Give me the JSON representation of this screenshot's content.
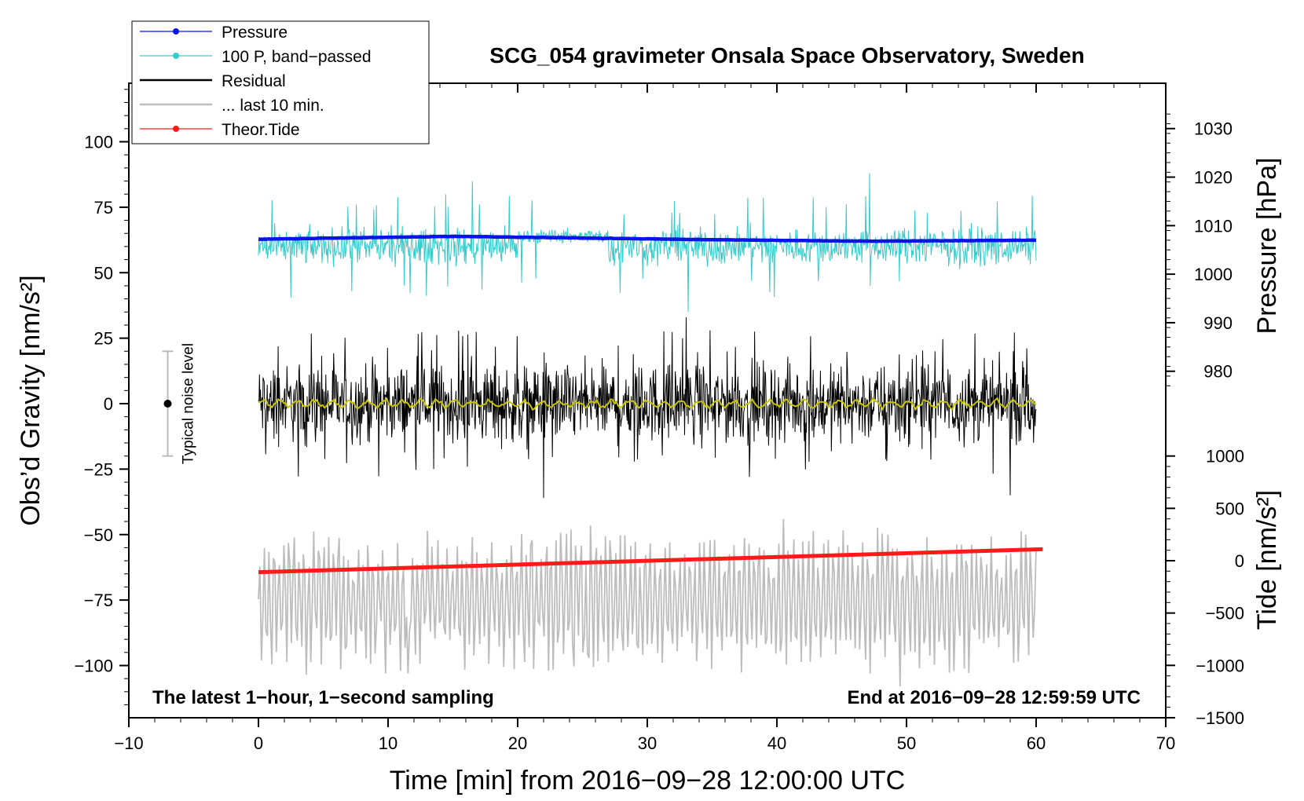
{
  "chart_data": {
    "type": "line",
    "title": "SCG_054 gravimeter Onsala Space Observatory, Sweden",
    "xlabel": "Time [min] from 2016−09−28 12:00:00 UTC",
    "ylabel_left": "Obs’d Gravity [nm/s²]",
    "ylabel_pressure": "Pressure [hPa]",
    "ylabel_tide": "Tide [nm/s²]",
    "xlim": [
      -10,
      70
    ],
    "ylim": [
      -120,
      122
    ],
    "x_ticks": [
      "−10",
      "0",
      "10",
      "20",
      "30",
      "40",
      "50",
      "60",
      "70"
    ],
    "x_tick_values": [
      -10,
      0,
      10,
      20,
      30,
      40,
      50,
      60,
      70
    ],
    "y_ticks": [
      "100",
      "75",
      "50",
      "25",
      "0",
      "−25",
      "−50",
      "−75",
      "−100"
    ],
    "y_tick_values": [
      100,
      75,
      50,
      25,
      0,
      -25,
      -50,
      -75,
      -100
    ],
    "pressure_ticks": [
      "1030",
      "1020",
      "1010",
      "1000",
      "990",
      "980"
    ],
    "pressure_tick_values": [
      1030,
      1020,
      1010,
      1000,
      990,
      980
    ],
    "tide_ticks": [
      "1000",
      "500",
      "0",
      "−500",
      "−1000",
      "−1500"
    ],
    "tide_tick_values": [
      1000,
      500,
      0,
      -500,
      -1000,
      -1500
    ],
    "legend": [
      "Pressure",
      "100 P, band−passed",
      "Residual",
      "... last 10 min.",
      "Theor.Tide"
    ],
    "noise_label": "Typical noise level",
    "noise_bar": {
      "x": -7,
      "center": 0,
      "half_range": 20
    },
    "note_left": "The latest 1−hour, 1−second sampling",
    "note_right": "End at 2016−09−28 12:59:59 UTC",
    "colors": {
      "pressure": "#0a14e6",
      "bandpassed": "#35cccc",
      "residual": "#000000",
      "residual_smooth": "#c8c400",
      "last10": "#bdbdbd",
      "tide": "#ff1a1a",
      "noise_bar": "#bbbbbb"
    },
    "series": [
      {
        "name": "Pressure",
        "x_range": [
          0,
          60
        ],
        "approx_hpa": [
          1007.2,
          1007.8,
          1007.1,
          1006.8,
          1007.0
        ],
        "approx_x": [
          0,
          15,
          35,
          47,
          60
        ]
      },
      {
        "name": "100 P, band−passed",
        "x_range": [
          0,
          60
        ],
        "center": 60,
        "amplitude": 10,
        "peaks": [
          [
            16.5,
            85
          ],
          [
            47.1,
            88
          ],
          [
            47.1,
            45
          ],
          [
            33,
            35
          ]
        ]
      },
      {
        "name": "Residual",
        "x_range": [
          0,
          60
        ],
        "center": 0,
        "amplitude": 24,
        "peaks": [
          [
            22,
            -36
          ],
          [
            33,
            33
          ],
          [
            58,
            -35
          ]
        ]
      },
      {
        "name": "Residual (smoothed)",
        "x_range": [
          0,
          60
        ],
        "center": 0,
        "amplitude": 2
      },
      {
        "name": "... last 10 min.",
        "x_range": [
          0,
          60
        ],
        "center": -75,
        "amplitude": 25,
        "peaks": [
          [
            40.5,
            -44
          ],
          [
            49.5,
            -108
          ],
          [
            11.5,
            -103
          ]
        ]
      },
      {
        "name": "Theor.Tide",
        "x": [
          0,
          60.5
        ],
        "y_nm_s2": [
          -110,
          110
        ]
      }
    ]
  }
}
